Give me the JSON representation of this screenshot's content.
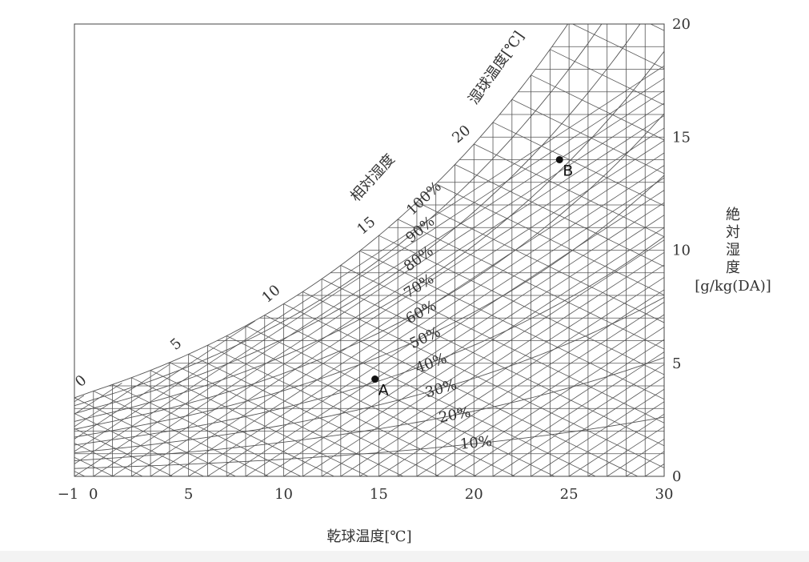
{
  "chart_data": {
    "type": "scatter",
    "title": "",
    "xlabel": "乾球温度[℃]",
    "ylabel": "絶対湿度 [g/kg(DA)]",
    "xlim": [
      -1,
      30
    ],
    "ylim": [
      0,
      20
    ],
    "x_ticks": [
      "−1",
      "0",
      "5",
      "10",
      "15",
      "20",
      "25",
      "30"
    ],
    "x_tick_values": [
      -1,
      0,
      5,
      10,
      15,
      20,
      25,
      30
    ],
    "y_ticks": [
      "0",
      "5",
      "10",
      "15",
      "20"
    ],
    "y_tick_values": [
      0,
      5,
      10,
      15,
      20
    ],
    "rh_label": "相対湿度",
    "rh_curves": [
      {
        "rh": 100,
        "label": "100%"
      },
      {
        "rh": 90,
        "label": "90%"
      },
      {
        "rh": 80,
        "label": "80%"
      },
      {
        "rh": 70,
        "label": "70%"
      },
      {
        "rh": 60,
        "label": "60%"
      },
      {
        "rh": 50,
        "label": "50%"
      },
      {
        "rh": 40,
        "label": "40%"
      },
      {
        "rh": 30,
        "label": "30%"
      },
      {
        "rh": 20,
        "label": "20%"
      },
      {
        "rh": 10,
        "label": "10%"
      }
    ],
    "wb_label": "湿球温度[℃]",
    "wb_ticks": [
      {
        "t": 0,
        "label": "0"
      },
      {
        "t": 5,
        "label": "5"
      },
      {
        "t": 10,
        "label": "10"
      },
      {
        "t": 15,
        "label": "15"
      },
      {
        "t": 20,
        "label": "20"
      }
    ],
    "points": [
      {
        "name": "A",
        "x": 14.8,
        "y": 4.3
      },
      {
        "name": "B",
        "x": 24.5,
        "y": 14.0
      }
    ],
    "grid": true
  }
}
